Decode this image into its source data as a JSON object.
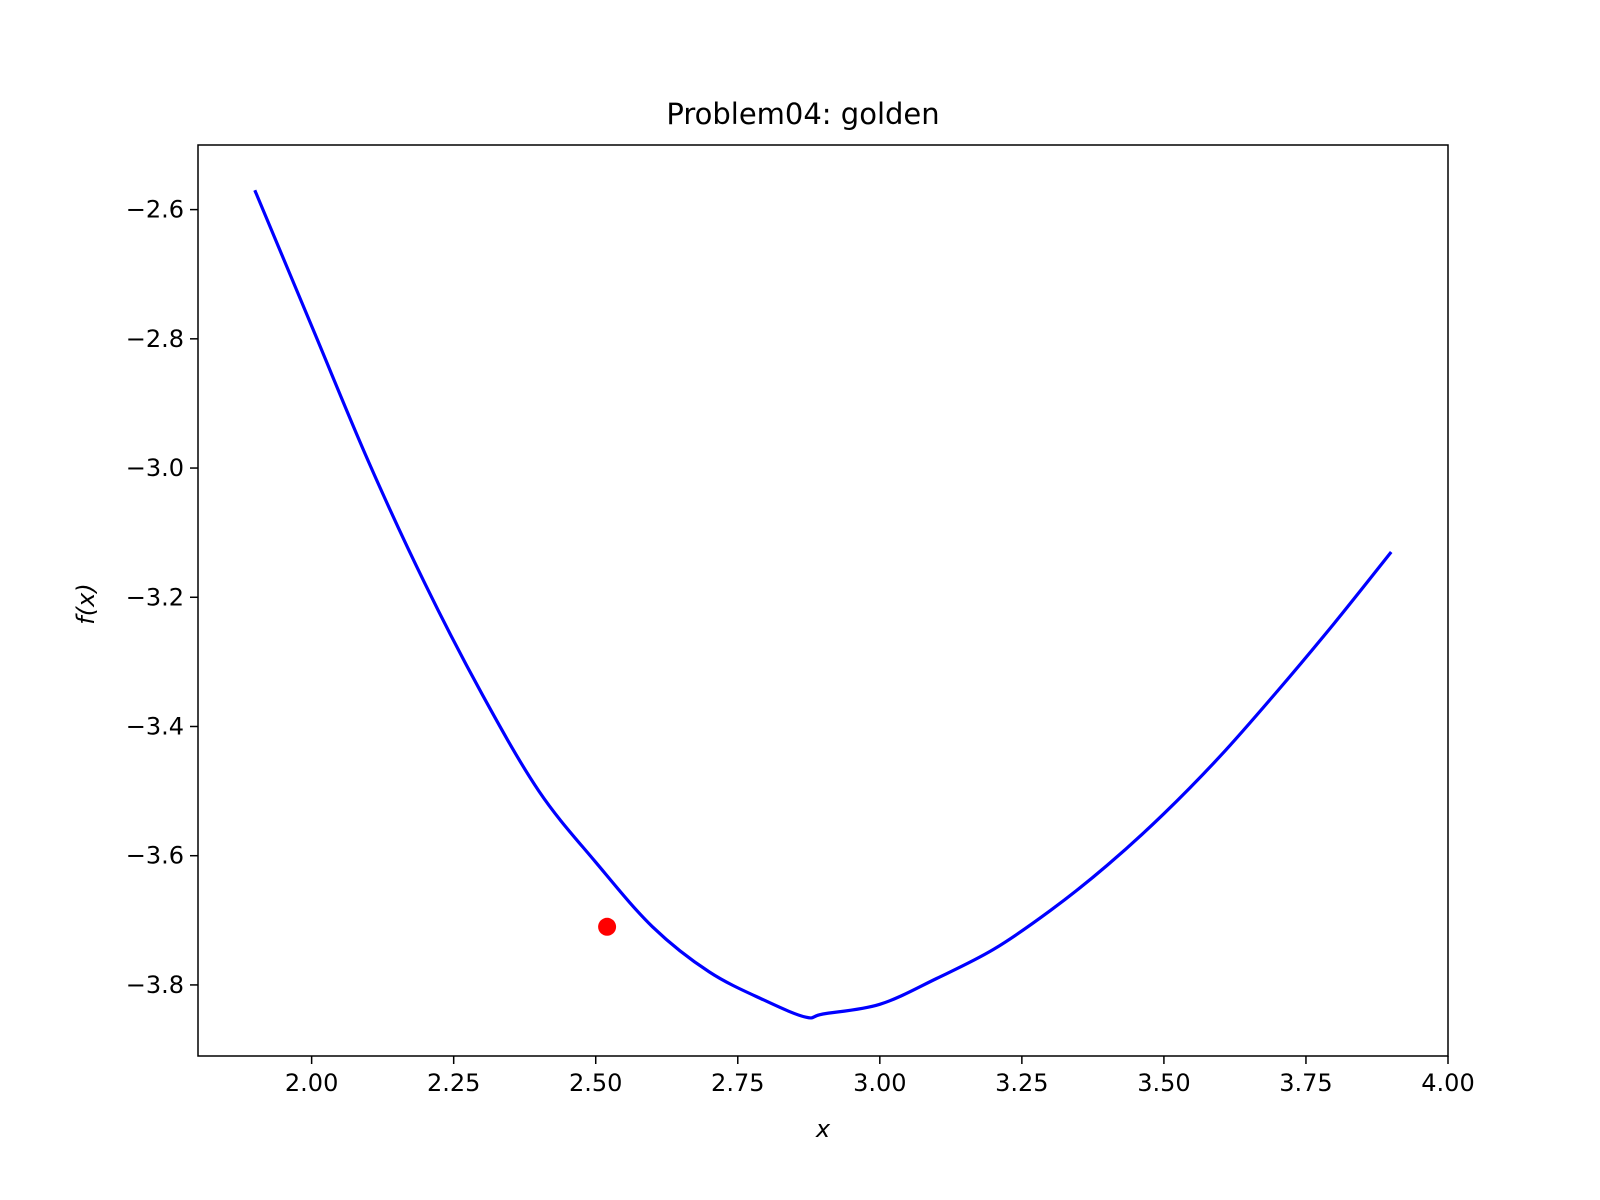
{
  "chart_data": {
    "type": "line",
    "title": "Problem04: golden",
    "xlabel": "x",
    "ylabel": "f(x)",
    "xlim": [
      1.8,
      4.0
    ],
    "ylim": [
      -3.91,
      -2.5
    ],
    "x_ticks": [
      2.0,
      2.25,
      2.5,
      2.75,
      3.0,
      3.25,
      3.5,
      3.75,
      4.0
    ],
    "x_tick_labels": [
      "2.00",
      "2.25",
      "2.50",
      "2.75",
      "3.00",
      "3.25",
      "3.50",
      "3.75",
      "4.00"
    ],
    "y_ticks": [
      -2.6,
      -2.8,
      -3.0,
      -3.2,
      -3.4,
      -3.6,
      -3.8
    ],
    "y_tick_labels": [
      "−2.6",
      "−2.8",
      "−3.0",
      "−3.2",
      "−3.4",
      "−3.6",
      "−3.8"
    ],
    "grid": false,
    "series": [
      {
        "color": "#0000ff",
        "x": [
          1.9,
          2.0,
          2.1,
          2.2,
          2.3,
          2.4,
          2.5,
          2.6,
          2.7,
          2.8,
          2.87,
          2.9,
          3.0,
          3.1,
          3.2,
          3.3,
          3.4,
          3.5,
          3.6,
          3.7,
          3.8,
          3.9
        ],
        "y": [
          -2.57,
          -2.78,
          -2.99,
          -3.18,
          -3.35,
          -3.5,
          -3.61,
          -3.71,
          -3.78,
          -3.825,
          -3.85,
          -3.845,
          -3.83,
          -3.79,
          -3.745,
          -3.685,
          -3.615,
          -3.535,
          -3.445,
          -3.345,
          -3.24,
          -3.13
        ]
      }
    ],
    "points": [
      {
        "color": "#ff0000",
        "x": 2.52,
        "y": -3.71
      }
    ]
  }
}
